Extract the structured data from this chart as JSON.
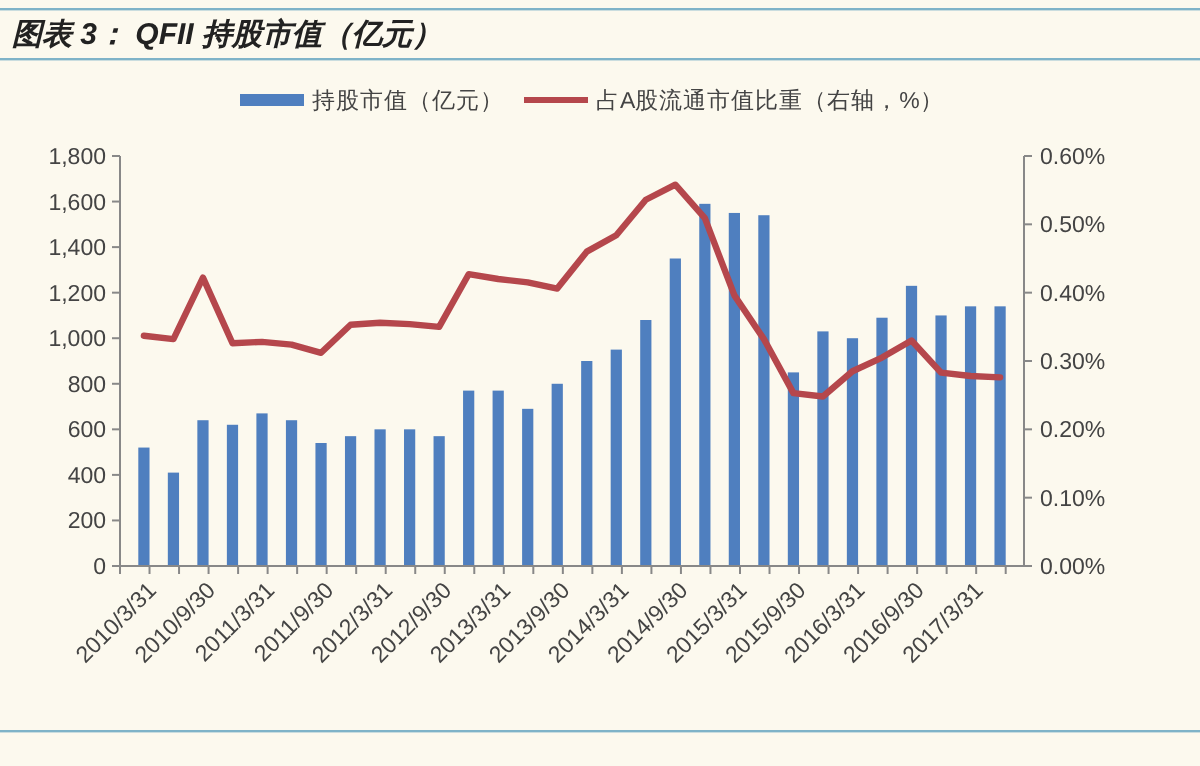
{
  "chart_data": {
    "type": "bar",
    "title": "图表 3： QFII 持股市值（亿元）",
    "categories": [
      "2010/3/31",
      null,
      "2010/9/30",
      null,
      "2011/3/31",
      null,
      "2011/9/30",
      null,
      "2012/3/31",
      null,
      "2012/9/30",
      null,
      "2013/3/31",
      null,
      "2013/9/30",
      null,
      "2014/3/31",
      null,
      "2014/9/30",
      null,
      "2015/3/31",
      null,
      "2015/9/30",
      null,
      "2016/3/31",
      null,
      "2016/9/30",
      null,
      "2017/3/31",
      null
    ],
    "series": [
      {
        "name": "持股市值（亿元）",
        "color": "#4f7fbf",
        "values": [
          520,
          410,
          640,
          620,
          670,
          640,
          540,
          570,
          600,
          600,
          570,
          770,
          770,
          690,
          800,
          900,
          950,
          1080,
          1350,
          1590,
          1550,
          1540,
          850,
          1030,
          1000,
          1090,
          1230,
          1100,
          1140,
          1140
        ]
      },
      {
        "name": "占A股流通市值比重（右轴，%）",
        "type": "line",
        "axis": "y2",
        "color": "#b5474c",
        "values": [
          0.337,
          0.332,
          0.422,
          0.326,
          0.328,
          0.324,
          0.312,
          0.353,
          0.356,
          0.354,
          0.35,
          0.427,
          0.42,
          0.415,
          0.406,
          0.46,
          0.484,
          0.536,
          0.558,
          0.509,
          0.396,
          0.332,
          0.253,
          0.248,
          0.285,
          0.305,
          0.33,
          0.283,
          0.278,
          0.276
        ]
      }
    ],
    "ylim": [
      0,
      1800
    ],
    "yticks": [
      {
        "value": 0,
        "label": "0"
      },
      {
        "value": 200,
        "label": "200"
      },
      {
        "value": 400,
        "label": "400"
      },
      {
        "value": 600,
        "label": "600"
      },
      {
        "value": 800,
        "label": "800"
      },
      {
        "value": 1000,
        "label": "1,000"
      },
      {
        "value": 1200,
        "label": "1,200"
      },
      {
        "value": 1400,
        "label": "1,400"
      },
      {
        "value": 1600,
        "label": "1,600"
      },
      {
        "value": 1800,
        "label": "1,800"
      }
    ],
    "y2lim": [
      0,
      0.6
    ],
    "y2ticks": [
      {
        "value": 0,
        "label": "0.00%"
      },
      {
        "value": 0.1,
        "label": "0.10%"
      },
      {
        "value": 0.2,
        "label": "0.20%"
      },
      {
        "value": 0.3,
        "label": "0.30%"
      },
      {
        "value": 0.4,
        "label": "0.40%"
      },
      {
        "value": 0.5,
        "label": "0.50%"
      },
      {
        "value": 0.6,
        "label": "0.60%"
      }
    ],
    "legend": "top",
    "grid": false
  }
}
